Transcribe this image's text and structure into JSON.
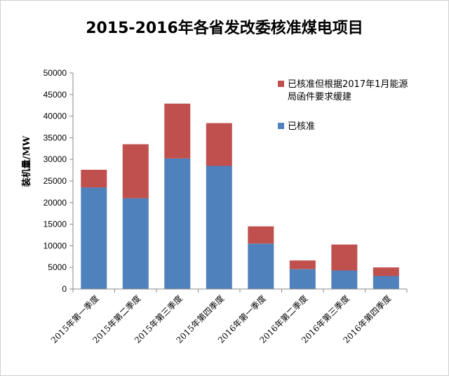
{
  "chart_data": {
    "type": "bar",
    "stacked": true,
    "title": "2015-2016年各省发改委核准煤电项目",
    "xlabel": "",
    "ylabel": "装机量/MW",
    "ylim": [
      0,
      50000
    ],
    "yticks": [
      0,
      5000,
      10000,
      15000,
      20000,
      25000,
      30000,
      35000,
      40000,
      45000,
      50000
    ],
    "grid": false,
    "legend_position": "top-right",
    "categories": [
      "2015年第一季度",
      "2015年第二季度",
      "2015年第三季度",
      "2015年第四季度",
      "2016年第一季度",
      "2016年第二季度",
      "2016年第三季度",
      "2016年第四季度"
    ],
    "series": [
      {
        "name": "已核准",
        "color": "#4f81bd",
        "values": [
          23500,
          21000,
          30200,
          28500,
          10500,
          4600,
          4300,
          3000
        ]
      },
      {
        "name": "已核准但根据2017年1月能源局函件要求缓建",
        "name_lines": [
          "已核准但根据2017年1月能源",
          "局函件要求缓建"
        ],
        "color": "#c0504d",
        "values": [
          4100,
          12500,
          12700,
          9900,
          4000,
          2000,
          6000,
          2000
        ]
      }
    ]
  }
}
